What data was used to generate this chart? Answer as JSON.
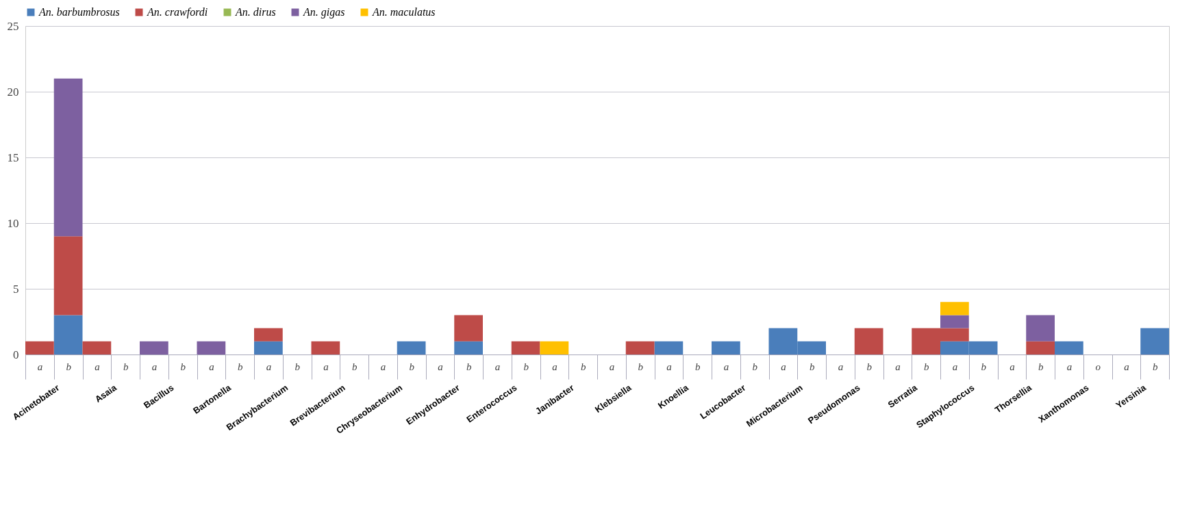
{
  "chart_data": {
    "type": "bar",
    "stacked": true,
    "categories": [
      "a",
      "b",
      "a",
      "b",
      "a",
      "b",
      "a",
      "b",
      "a",
      "b",
      "a",
      "b",
      "a",
      "b",
      "a",
      "b",
      "a",
      "b",
      "a",
      "b",
      "a",
      "b",
      "a",
      "b",
      "a",
      "b",
      "a",
      "b",
      "a",
      "b",
      "a",
      "b",
      "a",
      "b",
      "a",
      "b",
      "a",
      "o",
      "a",
      "b"
    ],
    "series": [
      {
        "name": "An. barbumbrosus",
        "color": "#4a7ebb",
        "values": [
          0,
          3,
          0,
          0,
          0,
          0,
          0,
          0,
          1,
          0,
          0,
          0,
          0,
          1,
          0,
          1,
          0,
          0,
          0,
          0,
          0,
          0,
          1,
          0,
          1,
          0,
          2,
          1,
          0,
          0,
          0,
          0,
          1,
          1,
          0,
          0,
          1,
          0,
          0,
          2
        ]
      },
      {
        "name": "An. crawfordi",
        "color": "#be4b48",
        "values": [
          1,
          6,
          1,
          0,
          0,
          0,
          0,
          0,
          1,
          0,
          1,
          0,
          0,
          0,
          0,
          2,
          0,
          1,
          0,
          0,
          0,
          1,
          0,
          0,
          0,
          0,
          0,
          0,
          0,
          2,
          0,
          2,
          1,
          0,
          0,
          1,
          0,
          0,
          0,
          0
        ]
      },
      {
        "name": "An. dirus",
        "color": "#98b954",
        "values": [
          0,
          0,
          0,
          0,
          0,
          0,
          0,
          0,
          0,
          0,
          0,
          0,
          0,
          0,
          0,
          0,
          0,
          0,
          0,
          0,
          0,
          0,
          0,
          0,
          0,
          0,
          0,
          0,
          0,
          0,
          0,
          0,
          0,
          0,
          0,
          0,
          0,
          0,
          0,
          0
        ]
      },
      {
        "name": "An. gigas",
        "color": "#7d60a0",
        "values": [
          0,
          12,
          0,
          0,
          1,
          0,
          1,
          0,
          0,
          0,
          0,
          0,
          0,
          0,
          0,
          0,
          0,
          0,
          0,
          0,
          0,
          0,
          0,
          0,
          0,
          0,
          0,
          0,
          0,
          0,
          0,
          0,
          1,
          0,
          0,
          2,
          0,
          0,
          0,
          0
        ]
      },
      {
        "name": "An. maculatus",
        "color": "#ffc000",
        "values": [
          0,
          0,
          0,
          0,
          0,
          0,
          0,
          0,
          0,
          0,
          0,
          0,
          0,
          0,
          0,
          0,
          0,
          0,
          1,
          0,
          0,
          0,
          0,
          0,
          0,
          0,
          0,
          0,
          0,
          0,
          0,
          0,
          1,
          0,
          0,
          0,
          0,
          0,
          0,
          0
        ]
      }
    ],
    "annotations": [
      "Acinetobater",
      "Asaia",
      "Bacillus",
      "Bartonella",
      "Brachybacterium",
      "Brevibacterium",
      "Chryseobacterium",
      "Enhydrobacter",
      "Enterococcus",
      "Janibacter",
      "Klebsiella",
      "Knoellia",
      "Leucobacter",
      "Microbacterium",
      "Pseudomonas",
      "Serratia",
      "Staphylococcus",
      "Thorsellia",
      "Xanthomonas",
      "Yersinia"
    ],
    "ylim": [
      0,
      25
    ],
    "yticks": [
      0,
      5,
      10,
      15,
      20,
      25
    ],
    "grid": "y",
    "legend": "top"
  }
}
